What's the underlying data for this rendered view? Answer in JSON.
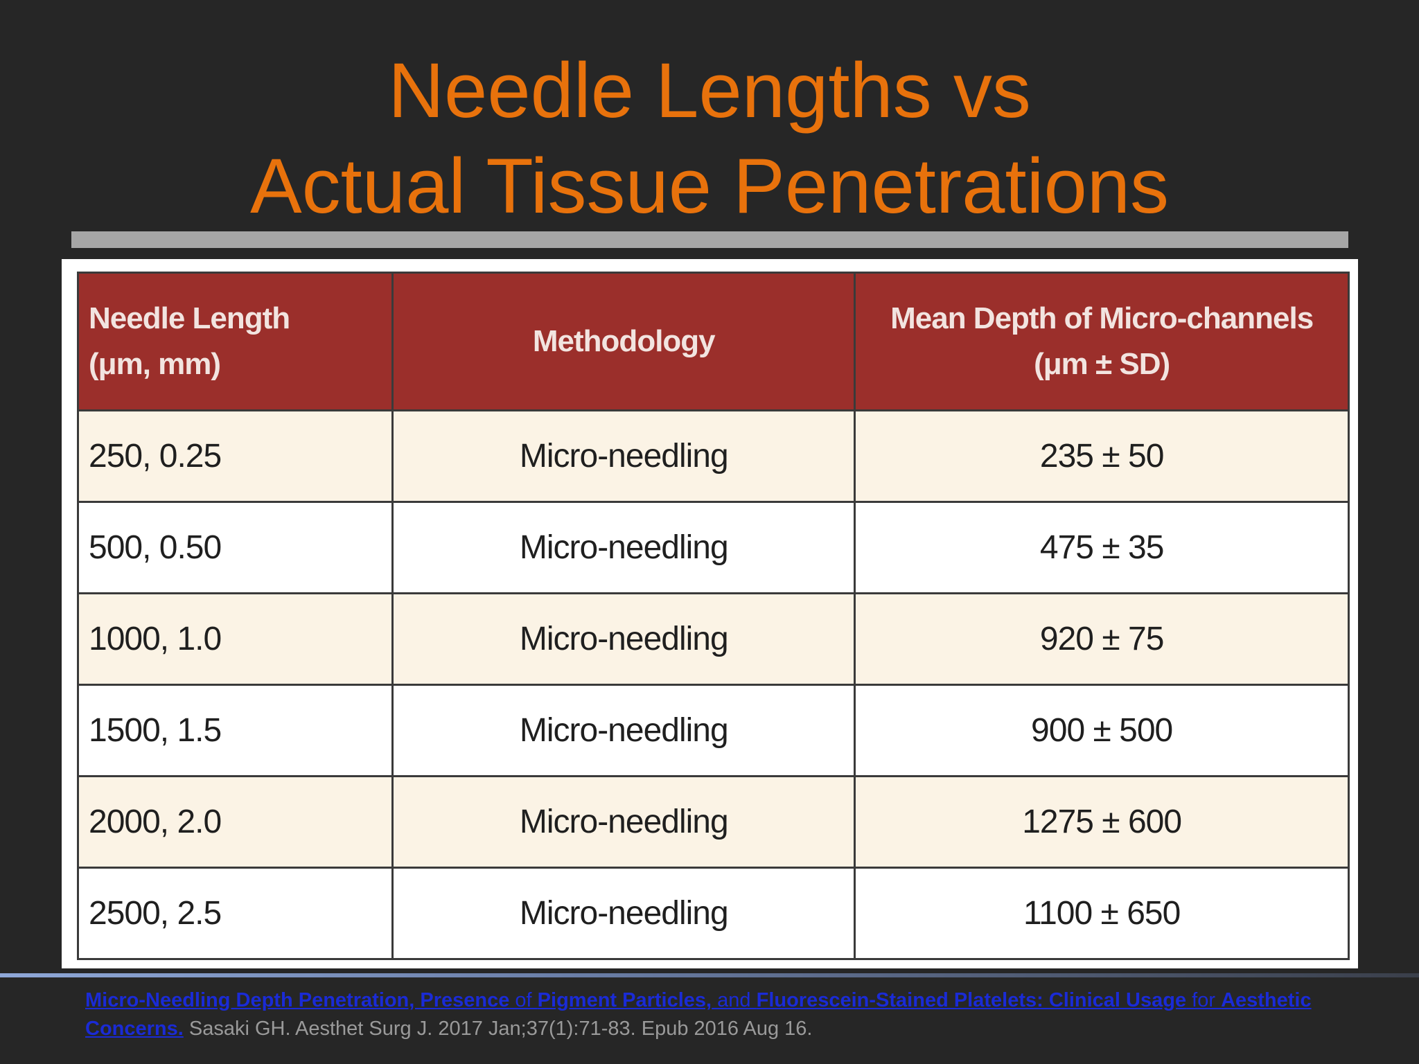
{
  "slide": {
    "title_line_1": "Needle Lengths vs",
    "title_line_2": "Actual Tissue Penetrations"
  },
  "table": {
    "headers": [
      {
        "line_1": "Needle Length",
        "line_2": "(μm, mm)"
      },
      {
        "line_1": "Methodology",
        "line_2": ""
      },
      {
        "line_1": "Mean Depth of Micro-channels",
        "line_2": "(μm ± SD)"
      }
    ],
    "rows": [
      {
        "needle_length": "250, 0.25",
        "methodology": "Micro-needling",
        "mean_depth": "235 ± 50"
      },
      {
        "needle_length": "500, 0.50",
        "methodology": "Micro-needling",
        "mean_depth": "475 ± 35"
      },
      {
        "needle_length": "1000, 1.0",
        "methodology": "Micro-needling",
        "mean_depth": "920 ± 75"
      },
      {
        "needle_length": "1500, 1.5",
        "methodology": "Micro-needling",
        "mean_depth": "900 ± 500"
      },
      {
        "needle_length": "2000, 2.0",
        "methodology": "Micro-needling",
        "mean_depth": "1275 ± 600"
      },
      {
        "needle_length": "2500, 2.5",
        "methodology": "Micro-needling",
        "mean_depth": "1100 ± 650"
      }
    ]
  },
  "citation": {
    "link_parts": [
      {
        "text": "Micro-Needling Depth Penetration, Presence",
        "bold": true
      },
      {
        "text": " of ",
        "bold": false
      },
      {
        "text": "Pigment Particles,",
        "bold": true
      },
      {
        "text": " and ",
        "bold": false
      },
      {
        "text": "Fluorescein-Stained Platelets: Clinical Usage",
        "bold": true
      },
      {
        "text": " for ",
        "bold": false
      },
      {
        "text": "Aesthetic Concerns.",
        "bold": true
      }
    ],
    "reference": " Sasaki GH. Aesthet Surg J. 2017 Jan;37(1):71-83. Epub 2016 Aug 16.",
    "link_color": "#1a2bd6"
  },
  "colors": {
    "background": "#262626",
    "title": "#E8720C",
    "header_fill": "#9B2F2B",
    "row_stripe": "#FBF3E5"
  }
}
